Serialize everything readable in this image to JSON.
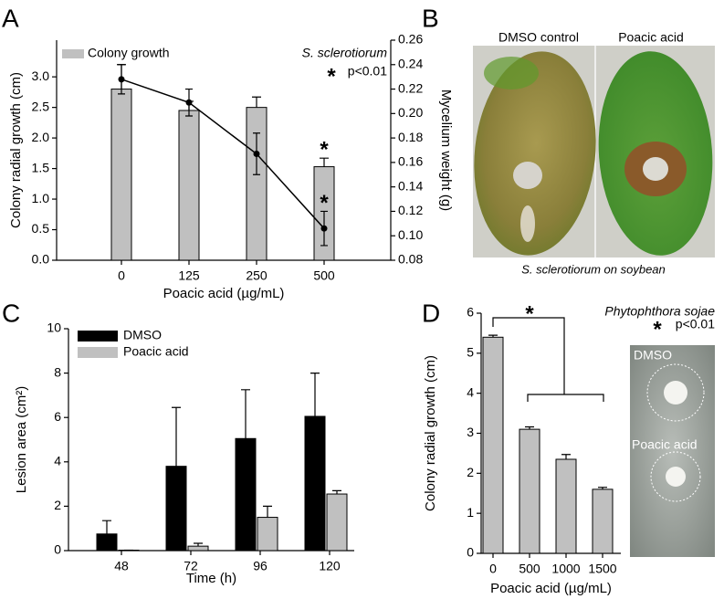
{
  "chart_data": [
    {
      "type": "bar_line",
      "panel": "A",
      "categories": [
        "0",
        "125",
        "250",
        "500"
      ],
      "xlabel": "Poacic acid (µg/mL)",
      "ylabel": "Colony radial growth (cm)",
      "y2label": "Mycelium weight (g)",
      "ylim": [
        0,
        3.6
      ],
      "yticks": [
        {
          "value": 0,
          "label": "0.0"
        },
        {
          "value": 0.5,
          "label": "0.5"
        },
        {
          "value": 1,
          "label": "1.0"
        },
        {
          "value": 1.5,
          "label": "1.5"
        },
        {
          "value": 2,
          "label": "2.0"
        },
        {
          "value": 2.5,
          "label": "2.5"
        },
        {
          "value": 3,
          "label": "3.0"
        }
      ],
      "y2lim": [
        0.08,
        0.26
      ],
      "y2ticks": [
        0.08,
        {
          "value": 0.1,
          "label": "0.10"
        },
        0.12,
        0.14,
        0.16,
        0.18,
        {
          "value": 0.2,
          "label": "0.20"
        },
        0.22,
        0.24,
        0.26
      ],
      "series": [
        {
          "name": "Colony growth",
          "type": "bar",
          "color": "#c0c0c0",
          "values": [
            2.8,
            2.45,
            2.5,
            1.53
          ],
          "errors": [
            0.4,
            0.15,
            0.17,
            0.14
          ],
          "significant": [
            false,
            false,
            false,
            true
          ]
        },
        {
          "type": "line",
          "axis": "y2",
          "color": "#000000",
          "values": [
            0.228,
            0.209,
            0.167,
            0.106
          ],
          "errors": [
            0.012,
            0.011,
            0.017,
            0.014
          ],
          "significant": [
            false,
            false,
            false,
            true
          ]
        }
      ],
      "species": "S. sclerotiorum",
      "star": "*",
      "significance": "p<0.01"
    },
    {
      "type": "image",
      "panel": "B",
      "labels": [
        "DMSO control",
        "Poacic acid"
      ],
      "caption": "S. sclerotiorum on soybean"
    },
    {
      "type": "grouped_bar",
      "panel": "C",
      "categories": [
        "48",
        "72",
        "96",
        "120"
      ],
      "xlabel": "Time (h)",
      "ylabel": "Lesion area (cm²)",
      "ylim": [
        0,
        10
      ],
      "yticks": [
        0,
        2,
        4,
        6,
        8,
        10
      ],
      "series": [
        {
          "name": "DMSO",
          "color": "#000000",
          "values": [
            0.75,
            3.8,
            5.05,
            6.05
          ],
          "errors": [
            0.6,
            2.65,
            2.2,
            1.95
          ]
        },
        {
          "name": "Poacic acid",
          "color": "#c0c0c0",
          "values": [
            0.02,
            0.2,
            1.5,
            2.55
          ],
          "errors": [
            0,
            0.13,
            0.5,
            0.15
          ]
        }
      ]
    },
    {
      "type": "bar",
      "panel": "D",
      "categories": [
        "0",
        "500",
        "1000",
        "1500"
      ],
      "xlabel": "Poacic acid (µg/mL)",
      "ylabel": "Colony radial growth (cm)",
      "ylim": [
        0,
        6
      ],
      "yticks": [
        0,
        1,
        2,
        3,
        4,
        5,
        6
      ],
      "series": [
        {
          "color": "#c0c0c0",
          "values": [
            5.4,
            3.1,
            2.35,
            1.6
          ],
          "errors": [
            0.05,
            0.06,
            0.12,
            0.05
          ]
        }
      ],
      "species": "Phytophthora sojae",
      "star": "*",
      "significance": "p<0.01",
      "image_labels": [
        "DMSO",
        "Poacic acid"
      ]
    }
  ]
}
